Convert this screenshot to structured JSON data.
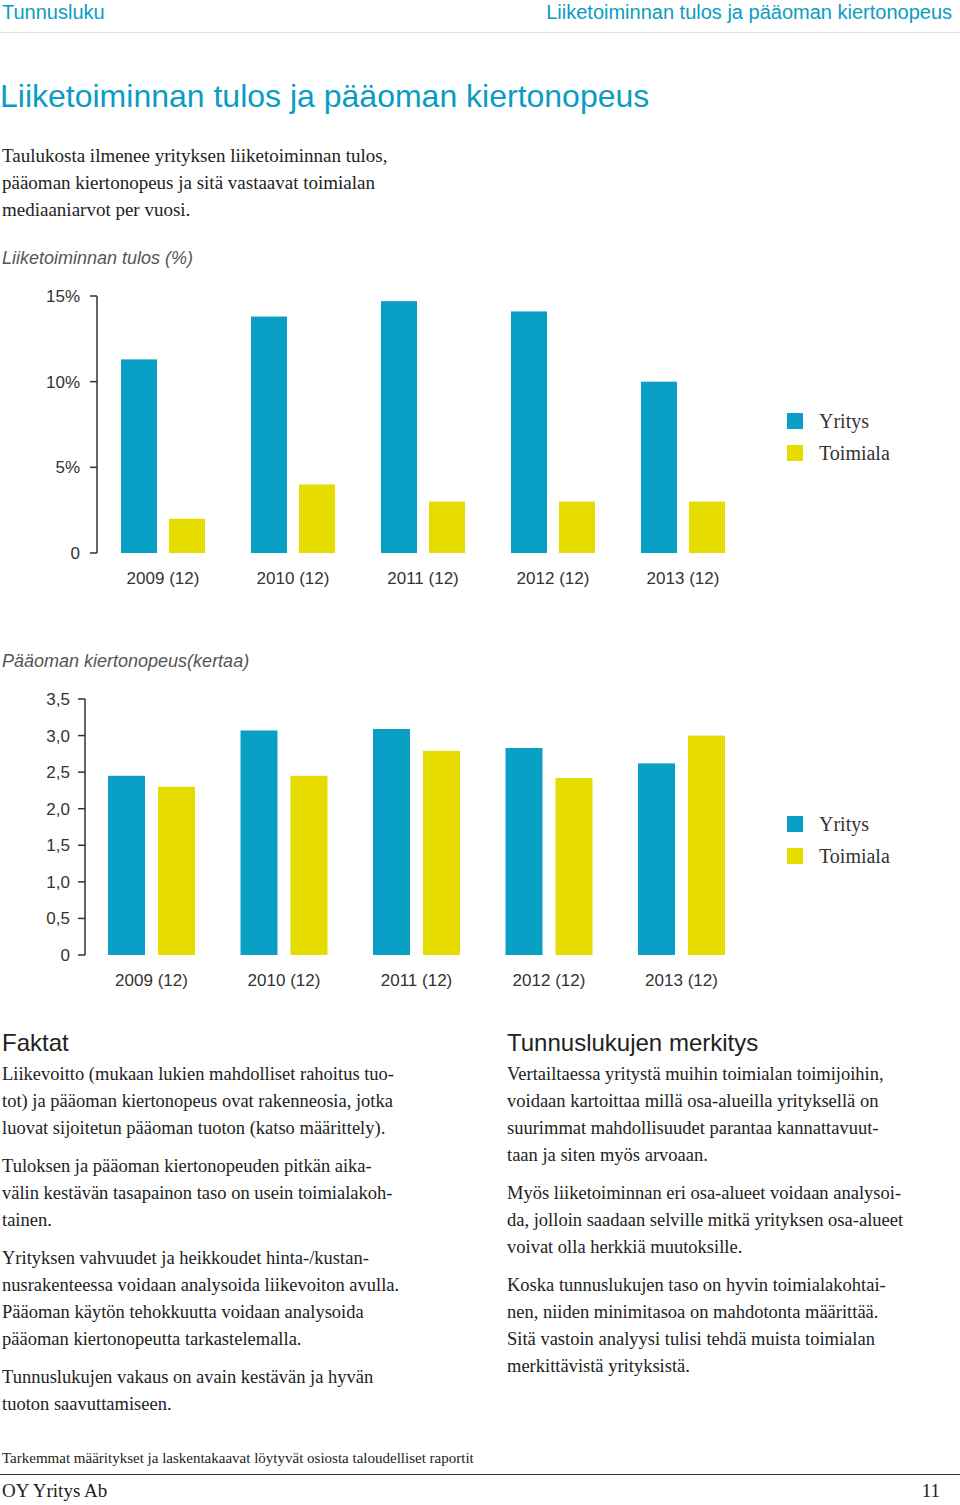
{
  "header": {
    "left": "Tunnusluku",
    "right": "Liiketoiminnan tulos ja pääoman kiertonopeus"
  },
  "title": "Liiketoiminnan tulos ja pääoman kiertonopeus",
  "intro": [
    "Taulukosta ilmenee yrityksen liiketoiminnan tulos,",
    "pääoman kiertonopeus ja sitä vastaavat toimialan",
    "mediaaniarvot per vuosi."
  ],
  "chart_data": [
    {
      "type": "bar",
      "title": "Liiketoiminnan tulos (%)",
      "categories": [
        "2009 (12)",
        "2010 (12)",
        "2011 (12)",
        "2012 (12)",
        "2013 (12)"
      ],
      "series": [
        {
          "name": "Yritys",
          "color": "#0aa0c6",
          "values": [
            11.3,
            13.8,
            14.7,
            14.1,
            10.0
          ]
        },
        {
          "name": "Toimiala",
          "color": "#e6dc00",
          "values": [
            2.0,
            4.0,
            3.0,
            3.0,
            3.0
          ]
        }
      ],
      "ylim": [
        0,
        15
      ],
      "yticks": [
        0,
        {
          "value": 5,
          "label": "5%"
        },
        {
          "value": 10,
          "label": "10%"
        },
        {
          "value": 15,
          "label": "15%"
        }
      ],
      "grid": false,
      "legend": "right"
    },
    {
      "type": "bar",
      "title": "Pääoman kiertonopeus(kertaa)",
      "categories": [
        "2009 (12)",
        "2010 (12)",
        "2011 (12)",
        "2012 (12)",
        "2013 (12)"
      ],
      "series": [
        {
          "name": "Yritys",
          "color": "#0aa0c6",
          "values": [
            2.45,
            3.07,
            3.09,
            2.83,
            2.62
          ]
        },
        {
          "name": "Toimiala",
          "color": "#e6dc00",
          "values": [
            2.3,
            2.45,
            2.79,
            2.42,
            3.0
          ]
        }
      ],
      "ylim": [
        0,
        3.5
      ],
      "yticks": [
        0,
        {
          "value": 0.5,
          "label": "0,5"
        },
        {
          "value": 1,
          "label": "1,0"
        },
        {
          "value": 1.5,
          "label": "1,5"
        },
        {
          "value": 2,
          "label": "2,0"
        },
        {
          "value": 2.5,
          "label": "2,5"
        },
        {
          "value": 3,
          "label": "3,0"
        },
        {
          "value": 3.5,
          "label": "3,5"
        }
      ],
      "grid": false,
      "legend": "right"
    }
  ],
  "facts": {
    "heading": "Faktat",
    "paragraphs": [
      [
        "Liikevoitto (mukaan lukien mahdolliset rahoitus tuo-",
        "tot) ja pääoman kiertonopeus ovat rakenneosia, jotka",
        "luovat sijoitetun pääoman tuoton (katso määrittely)."
      ],
      [
        "Tuloksen ja pääoman kiertonopeuden pitkän aika-",
        "välin kestävän tasapainon taso on usein toimialakoh-",
        "tainen."
      ],
      [
        "Yrityksen vahvuudet ja heikkoudet hinta-/kustan-",
        "nusrakenteessa voidaan analysoida liikevoiton avulla.",
        "Pääoman käytön tehokkuutta voidaan analysoida",
        "pääoman kiertonopeutta tarkastelemalla."
      ],
      [
        "Tunnuslukujen vakaus on avain kestävän ja hyvän",
        "tuoton saavuttamiseen."
      ]
    ]
  },
  "meaning": {
    "heading": "Tunnuslukujen merkitys",
    "paragraphs": [
      [
        "Vertailtaessa yritystä muihin toimialan toimijoihin,",
        "voidaan kartoittaa millä osa-alueilla yrityksellä on",
        "suurimmat mahdollisuudet parantaa kannattavuut-",
        "taan ja siten myös arvoaan."
      ],
      [
        "Myös liiketoiminnan eri osa-alueet voidaan analysoi-",
        "da, jolloin saadaan selville mitkä yrityksen osa-alueet",
        "voivat olla herkkiä muutoksille."
      ],
      [
        "Koska tunnuslukujen taso on hyvin toimialakohtai-",
        "nen, niiden minimitasoa on mahdotonta määrittää.",
        "Sitä vastoin analyysi tulisi tehdä muista toimialan",
        "merkittävistä yrityksistä."
      ]
    ]
  },
  "footer": {
    "note": "Tarkemmat määritykset ja laskentakaavat löytyvät osiosta taloudelliset raportit",
    "company": "OY Yritys Ab",
    "page": "11"
  }
}
